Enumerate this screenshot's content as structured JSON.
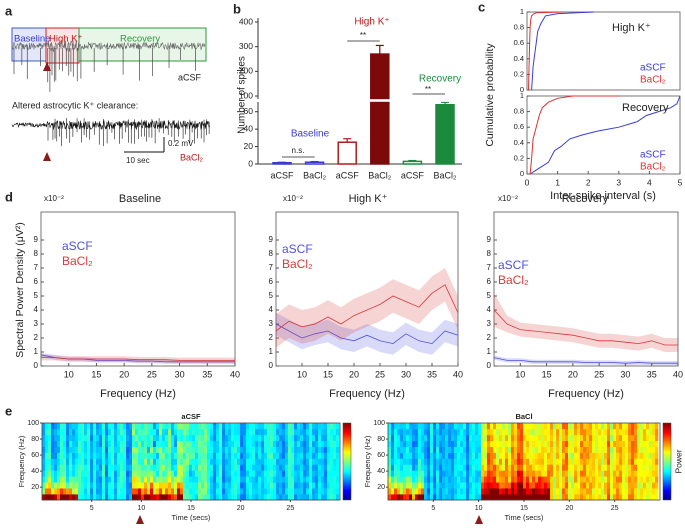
{
  "figure": {
    "panel_labels": [
      "a",
      "b",
      "c",
      "d",
      "e"
    ],
    "panel_a": {
      "segments": [
        "Baseline",
        "High K⁺",
        "Recovery"
      ],
      "top_trace_label": "aCSF",
      "caption": "Altered astrocytic K⁺ clearance:",
      "bottom_trace_label": "BaCl₂",
      "scale_v": "0.2 mV",
      "scale_t": "10 sec"
    }
  },
  "chart_data": [
    {
      "type": "bar",
      "ylabel": "Number of spikes",
      "categories": [
        "aCSF",
        "BaCl₂",
        "aCSF",
        "BaCl₂",
        "aCSF",
        "BaCl₂"
      ],
      "values": [
        1.5,
        2,
        25,
        270,
        3,
        68
      ],
      "errors": [
        0.5,
        0.8,
        4,
        35,
        1,
        5
      ],
      "colors": [
        "#3a3ad0",
        "#3a3ad0",
        "#b01c1c",
        "#7d0a0a",
        "#1b8a3c",
        "#1b8a3c"
      ],
      "filled": [
        false,
        false,
        false,
        true,
        false,
        true
      ],
      "ylim": [
        0,
        400
      ],
      "ybreak": [
        70,
        90
      ],
      "yticks": [
        0,
        20,
        40,
        60,
        100,
        200,
        300,
        400
      ],
      "annotations": [
        {
          "text": "Baseline",
          "color": "#3a3ad0"
        },
        {
          "text": "n.s.",
          "color": "#222222"
        },
        {
          "text": "High K⁺",
          "color": "#c0181c"
        },
        {
          "text": "**",
          "color": "#222222"
        },
        {
          "text": "Recovery",
          "color": "#1b8a3c"
        },
        {
          "text": "**",
          "color": "#222222"
        }
      ]
    },
    {
      "type": "line",
      "title": "High K⁺",
      "ylabel": "Cumulative probability",
      "xlim": [
        0,
        5
      ],
      "ylim": [
        0,
        1
      ],
      "yticks": [
        0,
        0.2,
        0.4,
        0.6,
        0.8,
        1
      ],
      "series": [
        {
          "name": "aSCF",
          "color": "#3b3bdb",
          "x": [
            0.15,
            0.2,
            0.25,
            0.3,
            0.35,
            0.45,
            0.6,
            1.0,
            2.2
          ],
          "values": [
            0,
            0.3,
            0.45,
            0.6,
            0.75,
            0.85,
            0.95,
            0.98,
            1
          ]
        },
        {
          "name": "BaCl₂",
          "color": "#e03030",
          "x": [
            0.05,
            0.08,
            0.1,
            0.12,
            0.15,
            0.2,
            0.3,
            1.2
          ],
          "values": [
            0,
            0.5,
            0.8,
            0.9,
            0.95,
            0.97,
            0.99,
            1
          ]
        }
      ]
    },
    {
      "type": "line",
      "title": "Recovery",
      "xlabel": "Inter-spike interval (s)",
      "xlim": [
        0,
        5
      ],
      "ylim": [
        0,
        1
      ],
      "xticks": [
        0,
        1,
        2,
        3,
        4,
        5
      ],
      "yticks": [
        0,
        0.2,
        0.4,
        0.6,
        0.8,
        1
      ],
      "series": [
        {
          "name": "aSCF",
          "color": "#3b3bdb",
          "x": [
            0.1,
            0.3,
            0.5,
            0.7,
            0.9,
            1.1,
            1.4,
            1.8,
            2.3,
            3.0,
            3.6,
            3.9,
            4.3,
            4.7,
            4.9,
            5.0
          ],
          "values": [
            0,
            0.05,
            0.1,
            0.15,
            0.3,
            0.35,
            0.45,
            0.5,
            0.55,
            0.6,
            0.67,
            0.75,
            0.8,
            0.85,
            0.9,
            1.0
          ]
        },
        {
          "name": "BaCl₂",
          "color": "#e03030",
          "x": [
            0.1,
            0.15,
            0.2,
            0.3,
            0.4,
            0.5,
            0.7,
            1.0,
            1.5,
            3.0
          ],
          "values": [
            0,
            0.2,
            0.45,
            0.6,
            0.75,
            0.85,
            0.92,
            0.97,
            1.0,
            1.0
          ]
        }
      ]
    },
    {
      "type": "line",
      "title": "Baseline",
      "scale_label": "x10⁻²",
      "ylabel": "Spectral Power Density (μV²)",
      "xlabel": "Frequency (Hz)",
      "x": [
        5,
        7.5,
        10,
        12.5,
        15,
        17.5,
        20,
        22.5,
        25,
        27.5,
        30,
        32.5,
        35,
        37.5,
        40
      ],
      "xlim": [
        5,
        40
      ],
      "xticks": [
        10,
        15,
        20,
        25,
        30,
        35,
        40
      ],
      "ylim": [
        0,
        11
      ],
      "yticks": [
        0,
        1,
        2,
        3,
        4,
        5,
        6,
        7,
        8,
        9
      ],
      "series": [
        {
          "name": "aSCF",
          "color": "#5050e0",
          "values": [
            0.8,
            0.6,
            0.5,
            0.5,
            0.4,
            0.4,
            0.4,
            0.35,
            0.35,
            0.3,
            0.3,
            0.3,
            0.3,
            0.3,
            0.3
          ],
          "lower": [
            0.65,
            0.45,
            0.35,
            0.35,
            0.25,
            0.25,
            0.25,
            0.2,
            0.2,
            0.15,
            0.15,
            0.15,
            0.15,
            0.15,
            0.15
          ],
          "upper": [
            0.95,
            0.75,
            0.65,
            0.65,
            0.55,
            0.55,
            0.55,
            0.5,
            0.5,
            0.45,
            0.45,
            0.45,
            0.45,
            0.45,
            0.45
          ]
        },
        {
          "name": "BaCl₂",
          "color": "#d83a3a",
          "values": [
            0.6,
            0.6,
            0.5,
            0.5,
            0.5,
            0.5,
            0.5,
            0.45,
            0.45,
            0.45,
            0.4,
            0.4,
            0.4,
            0.4,
            0.4
          ],
          "lower": [
            0.4,
            0.4,
            0.3,
            0.3,
            0.3,
            0.3,
            0.3,
            0.25,
            0.25,
            0.25,
            0.2,
            0.2,
            0.2,
            0.2,
            0.2
          ],
          "upper": [
            0.8,
            0.8,
            0.7,
            0.7,
            0.7,
            0.7,
            0.7,
            0.65,
            0.65,
            0.65,
            0.6,
            0.6,
            0.6,
            0.6,
            0.6
          ]
        }
      ]
    },
    {
      "type": "line",
      "title": "High K⁺",
      "scale_label": "x10⁻²",
      "xlabel": "Frequency (Hz)",
      "x": [
        5,
        7.5,
        10,
        12.5,
        15,
        17.5,
        20,
        22.5,
        25,
        27.5,
        30,
        32.5,
        35,
        37.5,
        40
      ],
      "xlim": [
        5,
        40
      ],
      "xticks": [
        10,
        15,
        20,
        25,
        30,
        35,
        40
      ],
      "ylim": [
        0,
        11
      ],
      "yticks": [
        0,
        1,
        2,
        3,
        4,
        5,
        6,
        7,
        8,
        9
      ],
      "series": [
        {
          "name": "aSCF",
          "color": "#5050e0",
          "values": [
            3.0,
            2.5,
            2.0,
            2.3,
            2.5,
            2.0,
            1.8,
            2.2,
            1.8,
            1.6,
            2.3,
            1.8,
            1.6,
            2.5,
            2.2
          ],
          "lower": [
            2.2,
            1.7,
            1.2,
            1.5,
            1.7,
            1.2,
            1.0,
            1.4,
            1.0,
            0.8,
            1.5,
            1.0,
            0.8,
            1.7,
            1.4
          ],
          "upper": [
            3.8,
            3.3,
            2.8,
            3.1,
            3.3,
            2.8,
            2.6,
            3.0,
            2.6,
            2.4,
            3.1,
            2.6,
            2.4,
            3.3,
            3.0
          ]
        },
        {
          "name": "BaCl₂",
          "color": "#d83a3a",
          "values": [
            2.5,
            3.2,
            2.8,
            3.0,
            3.5,
            3.0,
            3.6,
            4.0,
            4.4,
            5.0,
            4.6,
            4.2,
            5.2,
            5.8,
            3.8
          ],
          "lower": [
            1.3,
            2.0,
            1.6,
            1.8,
            2.3,
            1.8,
            2.4,
            2.8,
            3.2,
            3.8,
            3.4,
            3.0,
            4.0,
            4.6,
            2.6
          ],
          "upper": [
            3.7,
            4.4,
            4.0,
            4.2,
            4.7,
            4.2,
            4.8,
            5.2,
            5.6,
            6.2,
            5.8,
            5.4,
            6.4,
            7.0,
            5.0
          ]
        }
      ]
    },
    {
      "type": "line",
      "title": "Recovery",
      "scale_label": "x10⁻²",
      "xlabel": "Frequency (Hz)",
      "x": [
        5,
        7.5,
        10,
        12.5,
        15,
        17.5,
        20,
        22.5,
        25,
        27.5,
        30,
        32.5,
        35,
        37.5,
        40
      ],
      "xlim": [
        5,
        40
      ],
      "xticks": [
        10,
        15,
        20,
        25,
        30,
        35,
        40
      ],
      "ylim": [
        0,
        11
      ],
      "yticks": [
        0,
        1,
        2,
        3,
        4,
        5,
        6,
        7,
        8,
        9
      ],
      "series": [
        {
          "name": "aSCF",
          "color": "#5050e0",
          "values": [
            0.6,
            0.4,
            0.4,
            0.3,
            0.3,
            0.3,
            0.3,
            0.25,
            0.25,
            0.25,
            0.2,
            0.25,
            0.2,
            0.2,
            0.2
          ],
          "lower": [
            0.45,
            0.25,
            0.25,
            0.15,
            0.15,
            0.15,
            0.15,
            0.1,
            0.1,
            0.1,
            0.05,
            0.1,
            0.05,
            0.05,
            0.05
          ],
          "upper": [
            0.75,
            0.55,
            0.55,
            0.45,
            0.45,
            0.45,
            0.45,
            0.4,
            0.4,
            0.4,
            0.35,
            0.4,
            0.35,
            0.35,
            0.35
          ]
        },
        {
          "name": "BaCl₂",
          "color": "#d83a3a",
          "values": [
            4.0,
            3.0,
            2.6,
            2.5,
            2.4,
            2.3,
            2.2,
            2.0,
            1.8,
            1.8,
            1.7,
            1.6,
            1.8,
            1.5,
            1.5
          ],
          "lower": [
            2.8,
            2.4,
            2.1,
            2.0,
            1.9,
            1.8,
            1.7,
            1.5,
            1.3,
            1.3,
            1.2,
            1.1,
            1.3,
            1.0,
            1.0
          ],
          "upper": [
            5.2,
            3.6,
            3.1,
            3.0,
            2.9,
            2.8,
            2.7,
            2.5,
            2.3,
            2.3,
            2.2,
            2.1,
            2.3,
            2.0,
            2.0
          ]
        }
      ]
    },
    {
      "type": "spectrogram",
      "title": "aCSF",
      "ylabel": "Frequency (Hz)",
      "xlabel": "Time (secs)",
      "xlim": [
        0,
        30
      ],
      "ylim": [
        4,
        100
      ],
      "xticks": [
        5,
        10,
        15,
        20,
        25
      ],
      "yticks": [
        20,
        40,
        60,
        80,
        100
      ]
    },
    {
      "type": "spectrogram",
      "title": "BaCl",
      "ylabel": "Frequency (Hz)",
      "xlabel": "Time (secs)",
      "colorbar_label": "Power",
      "xlim": [
        0,
        30
      ],
      "ylim": [
        4,
        100
      ],
      "xticks": [
        5,
        10,
        15,
        20,
        25
      ],
      "yticks": [
        20,
        40,
        60,
        80,
        100
      ]
    }
  ]
}
